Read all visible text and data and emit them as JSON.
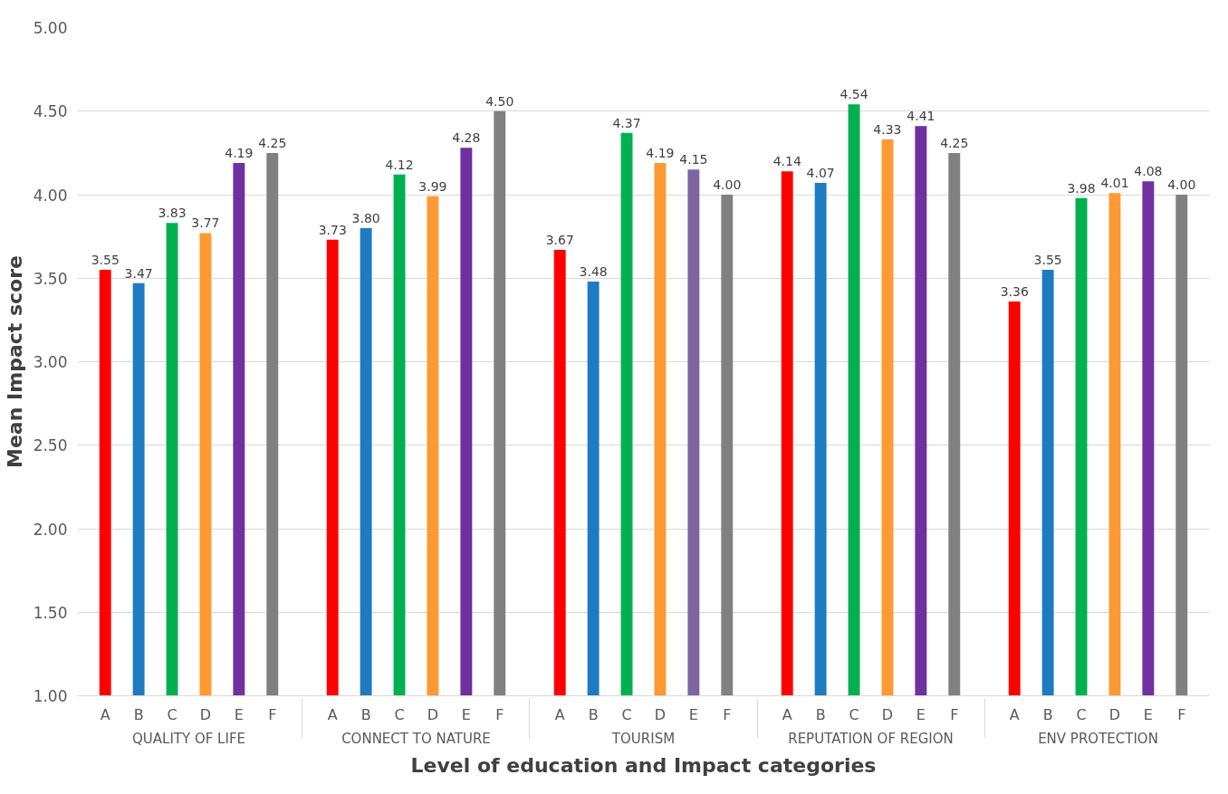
{
  "chart_data": {
    "type": "bar",
    "xlabel": "Level of education and Impact categories",
    "ylabel": "Mean Impact score",
    "categories": [
      "QUALITY OF LIFE",
      "CONNECT TO NATURE",
      "TOURISM",
      "REPUTATION OF REGION",
      "ENV PROTECTION"
    ],
    "series": [
      {
        "name": "A",
        "color": "#ff0000",
        "values": [
          3.55,
          3.73,
          3.67,
          4.14,
          3.36
        ],
        "value_labels": [
          "3.55",
          "3.73",
          "3.67",
          "4.14",
          "3.36"
        ]
      },
      {
        "name": "B",
        "color": "#1f7bc1",
        "values": [
          3.47,
          3.8,
          3.48,
          4.07,
          3.55
        ],
        "value_labels": [
          "3.47",
          "3.80",
          "3.48",
          "4.07",
          "3.55"
        ]
      },
      {
        "name": "C",
        "color": "#00b050",
        "values": [
          3.83,
          4.12,
          4.37,
          4.54,
          3.98
        ],
        "value_labels": [
          "3.83",
          "4.12",
          "4.37",
          "4.54",
          "3.98"
        ]
      },
      {
        "name": "D",
        "color": "#ff9933",
        "values": [
          3.77,
          3.99,
          4.19,
          4.33,
          4.01
        ],
        "value_labels": [
          "3.77",
          "3.99",
          "4.19",
          "4.33",
          "4.01"
        ]
      },
      {
        "name": "E",
        "colors": [
          "#7030a0",
          "#7030a0",
          "#8064a2",
          "#7030a0",
          "#7030a0"
        ],
        "values": [
          4.19,
          4.28,
          4.15,
          4.41,
          4.08
        ],
        "value_labels": [
          "4.19",
          "4.28",
          "4.15",
          "4.41",
          "4.08"
        ]
      },
      {
        "name": "F",
        "color": "#808080",
        "values": [
          4.25,
          4.5,
          4.0,
          4.25,
          4.0
        ],
        "value_labels": [
          "4.25",
          "4.50",
          "4.00",
          "4.25",
          "4.00"
        ]
      }
    ],
    "ylim": [
      1,
      5
    ],
    "yticks": [
      {
        "value": 1,
        "label": "1.00"
      },
      {
        "value": 1.5,
        "label": "1.50"
      },
      {
        "value": 2,
        "label": "2.00"
      },
      {
        "value": 2.5,
        "label": "2.50"
      },
      {
        "value": 3,
        "label": "3.00"
      },
      {
        "value": 3.5,
        "label": "3.50"
      },
      {
        "value": 4,
        "label": "4.00"
      },
      {
        "value": 4.5,
        "label": "4.50"
      },
      {
        "value": 5,
        "label": "5.00"
      }
    ],
    "grid": "y"
  }
}
